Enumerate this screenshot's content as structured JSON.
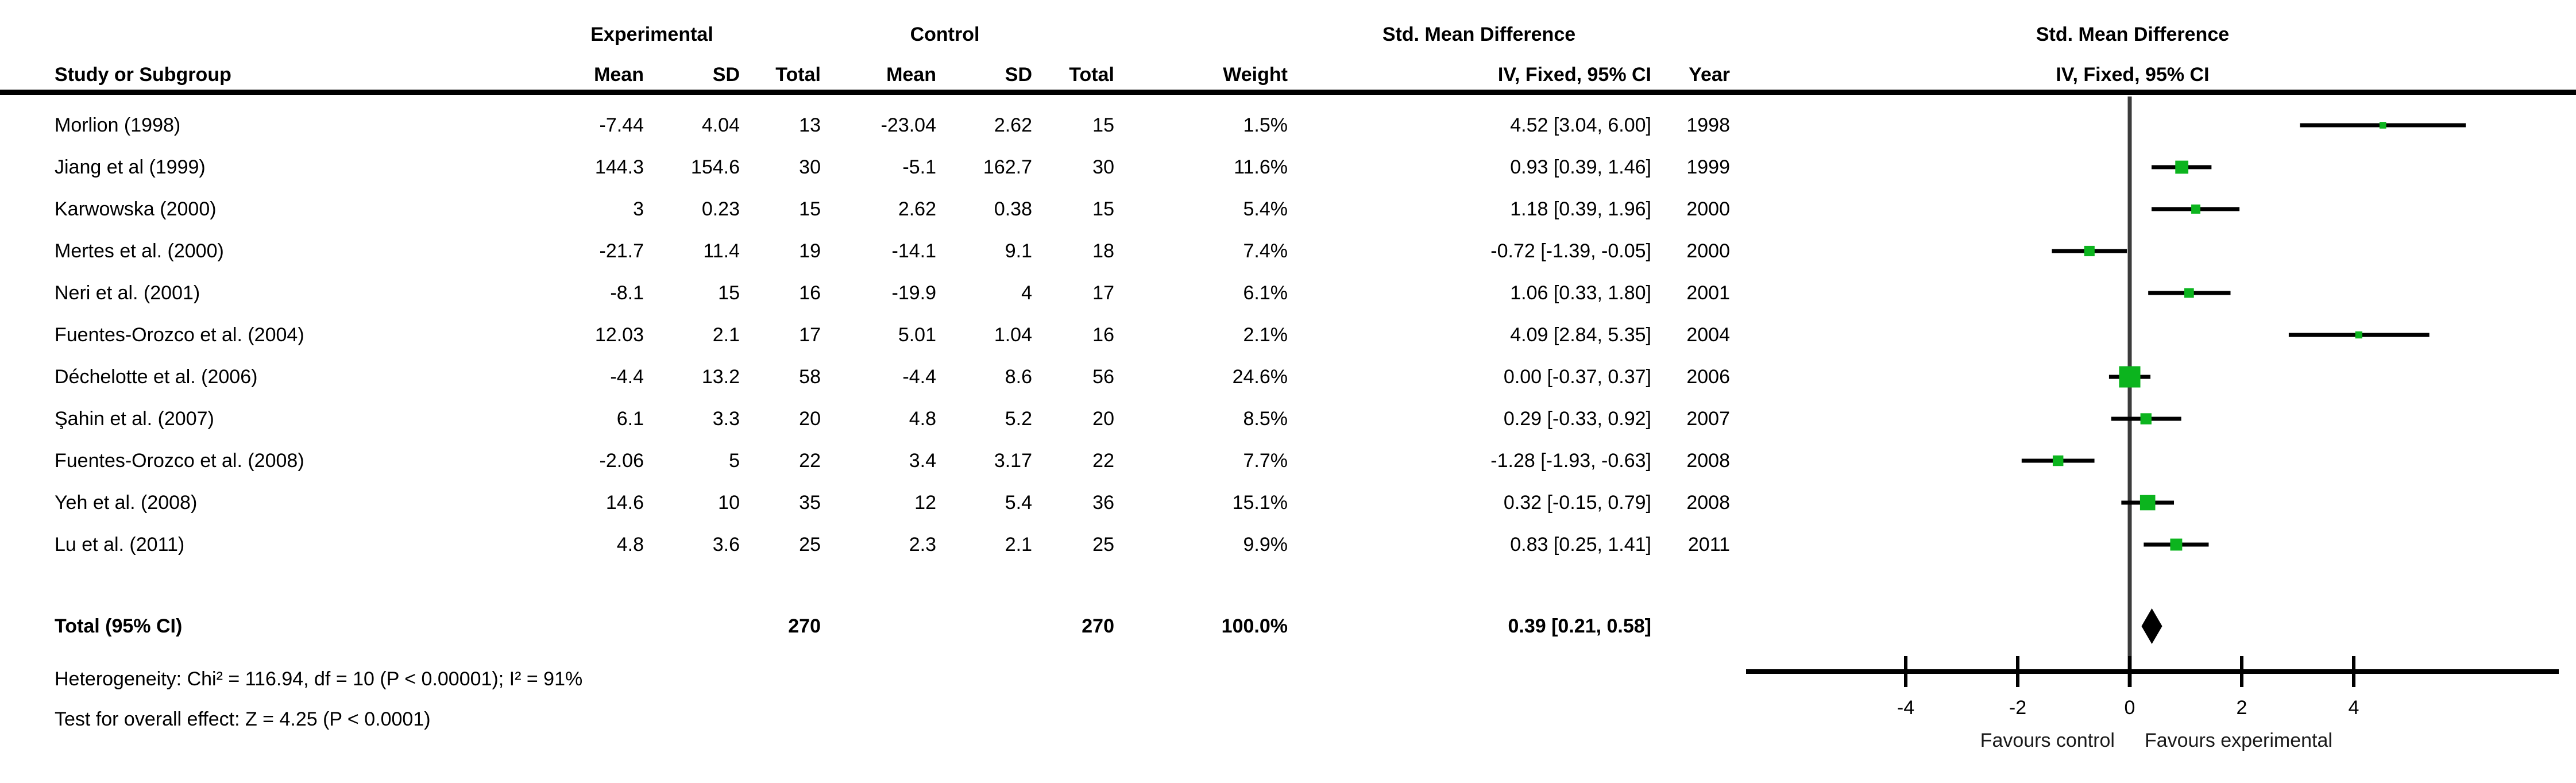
{
  "header": {
    "study": "Study or Subgroup",
    "experimental": "Experimental",
    "control": "Control",
    "mean": "Mean",
    "sd": "SD",
    "total": "Total",
    "weight": "Weight",
    "smd_title": "Std. Mean Difference",
    "smd_method": "IV, Fixed, 95% CI",
    "year": "Year"
  },
  "plot_header": {
    "line1": "Std. Mean Difference",
    "line2": "IV, Fixed, 95% CI"
  },
  "studies": [
    {
      "name": "Morlion (1998)",
      "mean_e": "-7.44",
      "sd_e": "4.04",
      "n_e": "13",
      "mean_c": "-23.04",
      "sd_c": "2.62",
      "n_c": "15",
      "weight": "1.5%",
      "ci": "4.52 [3.04, 6.00]",
      "year": "1998",
      "est": 4.52,
      "lo": 3.04,
      "hi": 6.0,
      "w": 1.5
    },
    {
      "name": "Jiang et al (1999)",
      "mean_e": "144.3",
      "sd_e": "154.6",
      "n_e": "30",
      "mean_c": "-5.1",
      "sd_c": "162.7",
      "n_c": "30",
      "weight": "11.6%",
      "ci": "0.93 [0.39, 1.46]",
      "year": "1999",
      "est": 0.93,
      "lo": 0.39,
      "hi": 1.46,
      "w": 11.6
    },
    {
      "name": "Karwowska (2000)",
      "mean_e": "3",
      "sd_e": "0.23",
      "n_e": "15",
      "mean_c": "2.62",
      "sd_c": "0.38",
      "n_c": "15",
      "weight": "5.4%",
      "ci": "1.18 [0.39, 1.96]",
      "year": "2000",
      "est": 1.18,
      "lo": 0.39,
      "hi": 1.96,
      "w": 5.4
    },
    {
      "name": "Mertes et al. (2000)",
      "mean_e": "-21.7",
      "sd_e": "11.4",
      "n_e": "19",
      "mean_c": "-14.1",
      "sd_c": "9.1",
      "n_c": "18",
      "weight": "7.4%",
      "ci": "-0.72 [-1.39, -0.05]",
      "year": "2000",
      "est": -0.72,
      "lo": -1.39,
      "hi": -0.05,
      "w": 7.4
    },
    {
      "name": "Neri et al. (2001)",
      "mean_e": "-8.1",
      "sd_e": "15",
      "n_e": "16",
      "mean_c": "-19.9",
      "sd_c": "4",
      "n_c": "17",
      "weight": "6.1%",
      "ci": "1.06 [0.33, 1.80]",
      "year": "2001",
      "est": 1.06,
      "lo": 0.33,
      "hi": 1.8,
      "w": 6.1
    },
    {
      "name": "Fuentes-Orozco et al. (2004)",
      "mean_e": "12.03",
      "sd_e": "2.1",
      "n_e": "17",
      "mean_c": "5.01",
      "sd_c": "1.04",
      "n_c": "16",
      "weight": "2.1%",
      "ci": "4.09 [2.84, 5.35]",
      "year": "2004",
      "est": 4.09,
      "lo": 2.84,
      "hi": 5.35,
      "w": 2.1
    },
    {
      "name": "Déchelotte et al. (2006)",
      "mean_e": "-4.4",
      "sd_e": "13.2",
      "n_e": "58",
      "mean_c": "-4.4",
      "sd_c": "8.6",
      "n_c": "56",
      "weight": "24.6%",
      "ci": "0.00 [-0.37, 0.37]",
      "year": "2006",
      "est": 0.0,
      "lo": -0.37,
      "hi": 0.37,
      "w": 24.6
    },
    {
      "name": "Şahin et al. (2007)",
      "mean_e": "6.1",
      "sd_e": "3.3",
      "n_e": "20",
      "mean_c": "4.8",
      "sd_c": "5.2",
      "n_c": "20",
      "weight": "8.5%",
      "ci": "0.29 [-0.33, 0.92]",
      "year": "2007",
      "est": 0.29,
      "lo": -0.33,
      "hi": 0.92,
      "w": 8.5
    },
    {
      "name": "Fuentes-Orozco et al. (2008)",
      "mean_e": "-2.06",
      "sd_e": "5",
      "n_e": "22",
      "mean_c": "3.4",
      "sd_c": "3.17",
      "n_c": "22",
      "weight": "7.7%",
      "ci": "-1.28 [-1.93, -0.63]",
      "year": "2008",
      "est": -1.28,
      "lo": -1.93,
      "hi": -0.63,
      "w": 7.7
    },
    {
      "name": "Yeh et al. (2008)",
      "mean_e": "14.6",
      "sd_e": "10",
      "n_e": "35",
      "mean_c": "12",
      "sd_c": "5.4",
      "n_c": "36",
      "weight": "15.1%",
      "ci": "0.32 [-0.15, 0.79]",
      "year": "2008",
      "est": 0.32,
      "lo": -0.15,
      "hi": 0.79,
      "w": 15.1
    },
    {
      "name": "Lu et al. (2011)",
      "mean_e": "4.8",
      "sd_e": "3.6",
      "n_e": "25",
      "mean_c": "2.3",
      "sd_c": "2.1",
      "n_c": "25",
      "weight": "9.9%",
      "ci": "0.83 [0.25, 1.41]",
      "year": "2011",
      "est": 0.83,
      "lo": 0.25,
      "hi": 1.41,
      "w": 9.9
    }
  ],
  "total": {
    "label": "Total (95% CI)",
    "n_e": "270",
    "n_c": "270",
    "weight": "100.0%",
    "ci": "0.39 [0.21, 0.58]",
    "est": 0.39,
    "lo": 0.21,
    "hi": 0.58
  },
  "footnotes": {
    "heterogeneity": "Heterogeneity: Chi² = 116.94, df = 10 (P < 0.00001); I² = 91%",
    "overall_effect": "Test for overall effect: Z = 4.25 (P < 0.0001)"
  },
  "axis": {
    "tick_labels": [
      "-4",
      "-2",
      "0",
      "2",
      "4"
    ],
    "tick_values": [
      -4,
      -2,
      0,
      2,
      4
    ],
    "favours_left": "Favours control",
    "favours_right": "Favours experimental"
  },
  "colors": {
    "marker_green": "#0cb41e",
    "diamond": "#000000",
    "ci_line": "#000000",
    "zero_line": "#3c3c3c",
    "text": "#000000"
  },
  "chart_data": {
    "type": "scatter",
    "subtype": "forest-plot",
    "title": "Std. Mean Difference  IV, Fixed, 95% CI",
    "x_ticks": [
      -4,
      -2,
      0,
      2,
      4
    ],
    "xlim": [
      -6.9,
      7.7
    ],
    "grid": false,
    "xlabel_left": "Favours control",
    "xlabel_right": "Favours experimental",
    "studies": [
      {
        "label": "Morlion (1998)",
        "smd": 4.52,
        "ci_low": 3.04,
        "ci_high": 6.0,
        "weight_pct": 1.5,
        "year": 1998
      },
      {
        "label": "Jiang et al (1999)",
        "smd": 0.93,
        "ci_low": 0.39,
        "ci_high": 1.46,
        "weight_pct": 11.6,
        "year": 1999
      },
      {
        "label": "Karwowska (2000)",
        "smd": 1.18,
        "ci_low": 0.39,
        "ci_high": 1.96,
        "weight_pct": 5.4,
        "year": 2000
      },
      {
        "label": "Mertes et al. (2000)",
        "smd": -0.72,
        "ci_low": -1.39,
        "ci_high": -0.05,
        "weight_pct": 7.4,
        "year": 2000
      },
      {
        "label": "Neri et al. (2001)",
        "smd": 1.06,
        "ci_low": 0.33,
        "ci_high": 1.8,
        "weight_pct": 6.1,
        "year": 2001
      },
      {
        "label": "Fuentes-Orozco et al. (2004)",
        "smd": 4.09,
        "ci_low": 2.84,
        "ci_high": 5.35,
        "weight_pct": 2.1,
        "year": 2004
      },
      {
        "label": "Déchelotte et al. (2006)",
        "smd": 0.0,
        "ci_low": -0.37,
        "ci_high": 0.37,
        "weight_pct": 24.6,
        "year": 2006
      },
      {
        "label": "Şahin et al. (2007)",
        "smd": 0.29,
        "ci_low": -0.33,
        "ci_high": 0.92,
        "weight_pct": 8.5,
        "year": 2007
      },
      {
        "label": "Fuentes-Orozco et al. (2008)",
        "smd": -1.28,
        "ci_low": -1.93,
        "ci_high": -0.63,
        "weight_pct": 7.7,
        "year": 2008
      },
      {
        "label": "Yeh et al. (2008)",
        "smd": 0.32,
        "ci_low": -0.15,
        "ci_high": 0.79,
        "weight_pct": 15.1,
        "year": 2008
      },
      {
        "label": "Lu et al. (2011)",
        "smd": 0.83,
        "ci_low": 0.25,
        "ci_high": 1.41,
        "weight_pct": 9.9,
        "year": 2011
      }
    ],
    "total": {
      "label": "Total (95% CI)",
      "smd": 0.39,
      "ci_low": 0.21,
      "ci_high": 0.58,
      "weight_pct": 100.0,
      "n_experimental": 270,
      "n_control": 270,
      "heterogeneity": "Chi² = 116.94, df = 10 (P < 0.00001); I² = 91%",
      "overall_effect": "Z = 4.25 (P < 0.0001)"
    }
  }
}
